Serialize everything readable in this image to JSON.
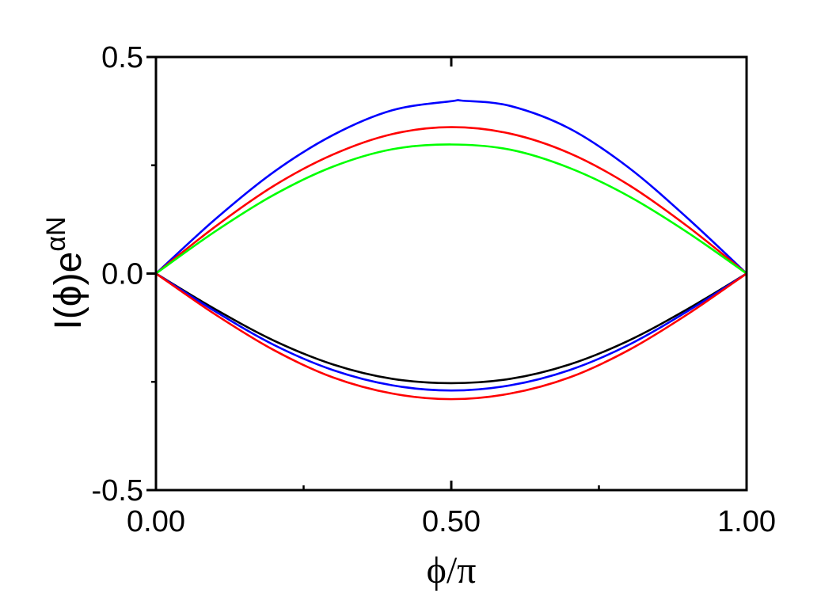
{
  "chart_data": {
    "type": "line",
    "xlabel": "ϕ/π",
    "ylabel": {
      "base": "I(ϕ)e",
      "superscript": "αN"
    },
    "xlim": [
      0,
      1
    ],
    "ylim": [
      -0.5,
      0.5
    ],
    "x_ticks": [
      {
        "value": 0.0,
        "label": "0.00"
      },
      {
        "value": 0.5,
        "label": "0.50"
      },
      {
        "value": 1.0,
        "label": "1.00"
      }
    ],
    "x_minor_ticks": [
      0.25,
      0.75
    ],
    "y_ticks": [
      {
        "value": 0.5,
        "label": "0.5"
      },
      {
        "value": 0.0,
        "label": "0.0"
      },
      {
        "value": -0.5,
        "label": "-0.5"
      }
    ],
    "y_minor_ticks": [
      0.25,
      -0.25
    ],
    "grid": false,
    "legend": "none",
    "series": [
      {
        "color": "#0000ff",
        "x": [
          0,
          0.1,
          0.2,
          0.3,
          0.4,
          0.5,
          0.52,
          0.6,
          0.7,
          0.8,
          0.9,
          1.0
        ],
        "y": [
          0,
          0.125,
          0.235,
          0.32,
          0.377,
          0.398,
          0.399,
          0.387,
          0.335,
          0.245,
          0.128,
          0
        ]
      },
      {
        "color": "#ff0000",
        "x": [
          0,
          0.1,
          0.2,
          0.3,
          0.4,
          0.5,
          0.6,
          0.7,
          0.8,
          0.9,
          1.0
        ],
        "y": [
          0,
          0.108,
          0.203,
          0.275,
          0.322,
          0.338,
          0.323,
          0.278,
          0.205,
          0.109,
          0
        ]
      },
      {
        "color": "#00ff00",
        "x": [
          0,
          0.1,
          0.2,
          0.3,
          0.4,
          0.5,
          0.6,
          0.7,
          0.8,
          0.9,
          1.0
        ],
        "y": [
          0,
          0.097,
          0.182,
          0.247,
          0.287,
          0.298,
          0.286,
          0.244,
          0.179,
          0.095,
          0
        ]
      },
      {
        "color": "#000000",
        "x": [
          0,
          0.1,
          0.2,
          0.3,
          0.4,
          0.5,
          0.6,
          0.7,
          0.8,
          0.9,
          1.0
        ],
        "y": [
          0,
          -0.082,
          -0.155,
          -0.21,
          -0.243,
          -0.253,
          -0.243,
          -0.21,
          -0.155,
          -0.082,
          0
        ]
      },
      {
        "color": "#0000ff",
        "x": [
          0,
          0.1,
          0.2,
          0.3,
          0.4,
          0.5,
          0.6,
          0.7,
          0.8,
          0.9,
          1.0
        ],
        "y": [
          0,
          -0.087,
          -0.165,
          -0.223,
          -0.258,
          -0.27,
          -0.258,
          -0.223,
          -0.165,
          -0.087,
          0
        ]
      },
      {
        "color": "#ff0000",
        "x": [
          0,
          0.1,
          0.2,
          0.3,
          0.4,
          0.5,
          0.6,
          0.7,
          0.8,
          0.9,
          1.0
        ],
        "y": [
          0,
          -0.094,
          -0.177,
          -0.24,
          -0.277,
          -0.29,
          -0.277,
          -0.24,
          -0.177,
          -0.094,
          0
        ]
      }
    ]
  }
}
